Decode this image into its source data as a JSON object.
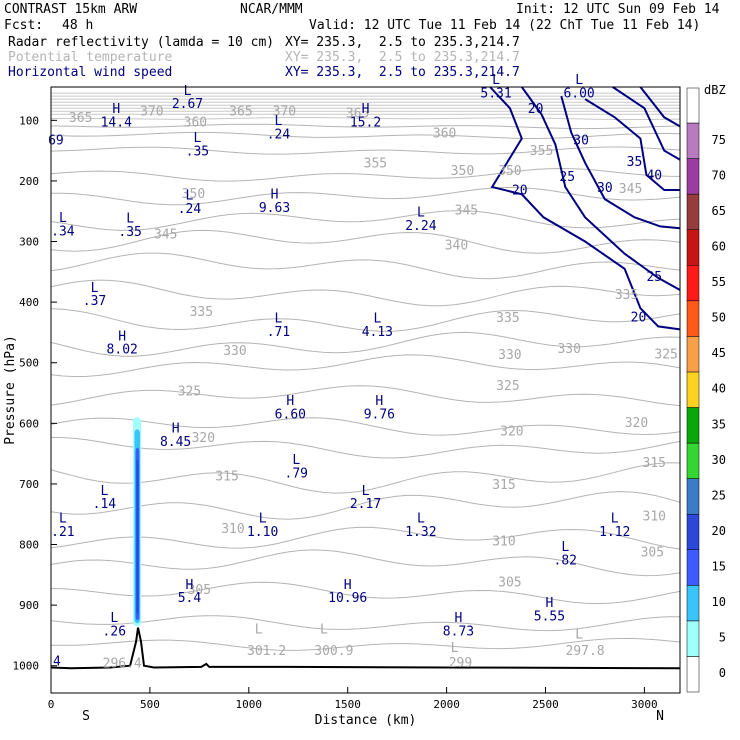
{
  "header": {
    "model": "CONTRAST 15km ARW",
    "center": "NCAR/MMM",
    "init": "Init: 12 UTC Sun 09 Feb 14",
    "fcst_label": "Fcst:",
    "fcst_value": "48 h",
    "valid": "Valid: 12 UTC Tue 11 Feb 14 (22 ChT Tue 11 Feb 14)",
    "fields": [
      {
        "name": "Radar reflectivity (lamda = 10 cm)",
        "xy": "XY= 235.3,  2.5 to 235.3,214.7",
        "color": "#000000"
      },
      {
        "name": "Potential temperature",
        "xy": "XY= 235.3,  2.5 to 235.3,214.7",
        "color": "#b4b4b4"
      },
      {
        "name": "Horizontal wind speed",
        "xy": "XY= 235.3,  2.5 to 235.3,214.7",
        "color": "#000080"
      }
    ]
  },
  "chart_data": {
    "type": "cross-section contour",
    "xlabel": "Distance (km)",
    "ylabel": "Pressure (hPa)",
    "xlim": [
      0,
      3180
    ],
    "ylim": [
      1045,
      45
    ],
    "x_ticks": [
      0,
      500,
      1000,
      1500,
      2000,
      2500,
      3000
    ],
    "y_ticks": [
      100,
      200,
      300,
      400,
      500,
      600,
      700,
      800,
      900,
      1000
    ],
    "x_end_labels": {
      "left": "S",
      "right": "N"
    },
    "colorbar": {
      "unit": "dBZ",
      "levels": [
        0,
        5,
        10,
        15,
        20,
        25,
        30,
        35,
        40,
        45,
        50,
        55,
        60,
        65,
        70,
        75
      ],
      "colors": [
        "#ffffff",
        "#9ffffb",
        "#3ac5fa",
        "#3d5bff",
        "#2b48d9",
        "#3b7bc7",
        "#33d633",
        "#08a808",
        "#ffd21f",
        "#f8a048",
        "#ff5a1a",
        "#ff1a1a",
        "#c81414",
        "#963c3c",
        "#9a3ca0",
        "#b87bc0"
      ]
    },
    "theta_labels": [
      {
        "v": "365",
        "x": 150,
        "p": 103
      },
      {
        "v": "370",
        "x": 510,
        "p": 92
      },
      {
        "v": "365",
        "x": 960,
        "p": 92
      },
      {
        "v": "370",
        "x": 1180,
        "p": 92
      },
      {
        "v": "365",
        "x": 1550,
        "p": 95
      },
      {
        "v": "360",
        "x": 730,
        "p": 110
      },
      {
        "v": "360",
        "x": 1990,
        "p": 128
      },
      {
        "v": "355",
        "x": 1640,
        "p": 178
      },
      {
        "v": "355",
        "x": 2480,
        "p": 157
      },
      {
        "v": "350",
        "x": 720,
        "p": 228
      },
      {
        "v": "350",
        "x": 2080,
        "p": 190
      },
      {
        "v": "350",
        "x": 2320,
        "p": 190
      },
      {
        "v": "345",
        "x": 2100,
        "p": 255
      },
      {
        "v": "345",
        "x": 2930,
        "p": 220
      },
      {
        "v": "345",
        "x": 580,
        "p": 295
      },
      {
        "v": "340",
        "x": 2050,
        "p": 313
      },
      {
        "v": "335",
        "x": 760,
        "p": 423
      },
      {
        "v": "335",
        "x": 2910,
        "p": 395
      },
      {
        "v": "335",
        "x": 2310,
        "p": 433
      },
      {
        "v": "330",
        "x": 930,
        "p": 487
      },
      {
        "v": "330",
        "x": 2320,
        "p": 494
      },
      {
        "v": "330",
        "x": 2620,
        "p": 484
      },
      {
        "v": "325",
        "x": 3110,
        "p": 493
      },
      {
        "v": "325",
        "x": 700,
        "p": 554
      },
      {
        "v": "325",
        "x": 2310,
        "p": 545
      },
      {
        "v": "320",
        "x": 770,
        "p": 631
      },
      {
        "v": "320",
        "x": 2330,
        "p": 620
      },
      {
        "v": "320",
        "x": 2960,
        "p": 606
      },
      {
        "v": "315",
        "x": 3050,
        "p": 672
      },
      {
        "v": "315",
        "x": 890,
        "p": 694
      },
      {
        "v": "315",
        "x": 2290,
        "p": 708
      },
      {
        "v": "310",
        "x": 920,
        "p": 781
      },
      {
        "v": "310",
        "x": 3050,
        "p": 760
      },
      {
        "v": "310",
        "x": 2290,
        "p": 802
      },
      {
        "v": "305",
        "x": 3040,
        "p": 820
      },
      {
        "v": "305",
        "x": 2320,
        "p": 869
      },
      {
        "v": "305",
        "x": 750,
        "p": 882
      }
    ],
    "surface_theta_labels": [
      {
        "v": "L",
        "x": 1050,
        "p": 947
      },
      {
        "v": "301.2",
        "x": 1090,
        "p": 982
      },
      {
        "v": "L",
        "x": 1380,
        "p": 947
      },
      {
        "v": "300.9",
        "x": 1430,
        "p": 982
      },
      {
        "v": "L",
        "x": 2040,
        "p": 977
      },
      {
        "v": "299",
        "x": 2070,
        "p": 1002
      },
      {
        "v": "L",
        "x": 2670,
        "p": 955
      },
      {
        "v": "297.8",
        "x": 2700,
        "p": 982
      },
      {
        "v": "296.4",
        "x": 360,
        "p": 1003
      }
    ],
    "wind_contour_labels": [
      {
        "v": "20",
        "x": 2450,
        "p": 88
      },
      {
        "v": "30",
        "x": 2680,
        "p": 140
      },
      {
        "v": "35",
        "x": 2950,
        "p": 175
      },
      {
        "v": "40",
        "x": 3050,
        "p": 198
      },
      {
        "v": "25",
        "x": 2610,
        "p": 200
      },
      {
        "v": "30",
        "x": 2800,
        "p": 218
      },
      {
        "v": "20",
        "x": 2370,
        "p": 222
      },
      {
        "v": "25",
        "x": 3050,
        "p": 365
      },
      {
        "v": "20",
        "x": 2970,
        "p": 432
      }
    ],
    "extrema": [
      {
        "t": "L",
        "v": "2.67",
        "x": 690,
        "p": 80
      },
      {
        "t": "H",
        "v": "14.4",
        "x": 330,
        "p": 110
      },
      {
        "t": "L",
        "v": "5.31",
        "x": 2250,
        "p": 62
      },
      {
        "t": "L",
        "v": "6.00",
        "x": 2670,
        "p": 62
      },
      {
        "t": "L",
        "v": ".24",
        "x": 1150,
        "p": 130
      },
      {
        "t": "H",
        "v": "15.2",
        "x": 1590,
        "p": 110
      },
      {
        "t": "",
        "v": "69",
        "x": 25,
        "p": 140
      },
      {
        "t": "L",
        "v": ".35",
        "x": 740,
        "p": 158
      },
      {
        "t": "L",
        "v": ".24",
        "x": 700,
        "p": 253
      },
      {
        "t": "H",
        "v": "9.63",
        "x": 1130,
        "p": 251
      },
      {
        "t": "L",
        "v": "2.24",
        "x": 1870,
        "p": 281
      },
      {
        "t": "L",
        "v": ".34",
        "x": 60,
        "p": 290
      },
      {
        "t": "L",
        "v": ".35",
        "x": 400,
        "p": 291
      },
      {
        "t": "L",
        "v": ".37",
        "x": 220,
        "p": 405
      },
      {
        "t": "L",
        "v": ".71",
        "x": 1150,
        "p": 456
      },
      {
        "t": "L",
        "v": "4.13",
        "x": 1650,
        "p": 456
      },
      {
        "t": "H",
        "v": "8.02",
        "x": 360,
        "p": 485
      },
      {
        "t": "H",
        "v": "6.60",
        "x": 1210,
        "p": 592
      },
      {
        "t": "H",
        "v": "9.76",
        "x": 1660,
        "p": 592
      },
      {
        "t": "H",
        "v": "8.45",
        "x": 630,
        "p": 637
      },
      {
        "t": "L",
        "v": ".79",
        "x": 1240,
        "p": 689
      },
      {
        "t": "L",
        "v": ".14",
        "x": 270,
        "p": 740
      },
      {
        "t": "L",
        "v": "2.17",
        "x": 1590,
        "p": 740
      },
      {
        "t": "L",
        "v": ".21",
        "x": 60,
        "p": 786
      },
      {
        "t": "L",
        "v": "1.10",
        "x": 1070,
        "p": 786
      },
      {
        "t": "L",
        "v": "1.32",
        "x": 1870,
        "p": 786
      },
      {
        "t": "L",
        "v": "1.12",
        "x": 2850,
        "p": 786
      },
      {
        "t": "L",
        "v": ".82",
        "x": 2600,
        "p": 833
      },
      {
        "t": "H",
        "v": "5.4",
        "x": 700,
        "p": 895
      },
      {
        "t": "H",
        "v": "10.96",
        "x": 1500,
        "p": 895
      },
      {
        "t": "H",
        "v": "5.55",
        "x": 2520,
        "p": 925
      },
      {
        "t": "L",
        "v": ".26",
        "x": 320,
        "p": 950
      },
      {
        "t": "H",
        "v": "8.73",
        "x": 2060,
        "p": 950
      },
      {
        "t": "",
        "v": "4",
        "x": 30,
        "p": 1000
      }
    ]
  }
}
